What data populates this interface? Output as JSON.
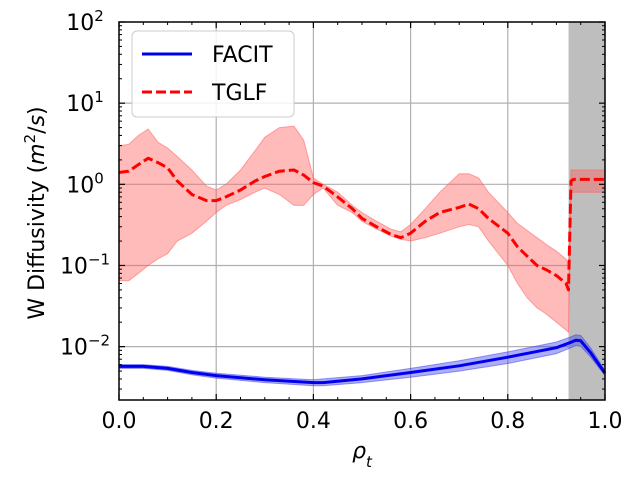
{
  "chart_data": {
    "type": "line",
    "xlabel": "ρ_t",
    "ylabel": "W Diffusivity (m²/s)",
    "xlim": [
      0.0,
      1.0
    ],
    "ylim": [
      0.0022,
      100
    ],
    "yscale": "log",
    "grid": true,
    "legend_position": "top-left",
    "x_ticks": [
      "0.0",
      "0.2",
      "0.4",
      "0.6",
      "0.8",
      "1.0"
    ],
    "y_ticks": [
      {
        "base": "10",
        "exp": "−2"
      },
      {
        "base": "10",
        "exp": "−1"
      },
      {
        "base": "10",
        "exp": "0"
      },
      {
        "base": "10",
        "exp": "1"
      },
      {
        "base": "10",
        "exp": "2"
      }
    ],
    "shaded_region": {
      "x_start": 0.925,
      "x_end": 1.0,
      "color": "#bebebe"
    },
    "series": [
      {
        "name": "FACIT",
        "color": "#0000ee",
        "style": "solid",
        "x": [
          0.0,
          0.05,
          0.1,
          0.15,
          0.2,
          0.3,
          0.4,
          0.42,
          0.5,
          0.6,
          0.7,
          0.8,
          0.9,
          0.93,
          0.94,
          0.95,
          0.97,
          1.0
        ],
        "y": [
          0.0057,
          0.0057,
          0.0054,
          0.0048,
          0.0044,
          0.0039,
          0.0036,
          0.0036,
          0.004,
          0.0048,
          0.0058,
          0.0074,
          0.0097,
          0.0113,
          0.012,
          0.0118,
          0.0085,
          0.0047
        ],
        "band_low": [
          0.0054,
          0.0054,
          0.0051,
          0.0045,
          0.0041,
          0.0036,
          0.0033,
          0.0033,
          0.0036,
          0.0042,
          0.005,
          0.0062,
          0.0082,
          0.0097,
          0.0103,
          0.0101,
          0.0075,
          0.0044
        ],
        "band_high": [
          0.006,
          0.006,
          0.0057,
          0.0051,
          0.0047,
          0.0042,
          0.0039,
          0.004,
          0.0044,
          0.0054,
          0.0067,
          0.0086,
          0.0114,
          0.0132,
          0.014,
          0.0137,
          0.0097,
          0.0051
        ]
      },
      {
        "name": "TGLF",
        "color": "#ff0000",
        "style": "dashed",
        "x": [
          0.0,
          0.02,
          0.04,
          0.06,
          0.08,
          0.1,
          0.12,
          0.15,
          0.18,
          0.2,
          0.22,
          0.25,
          0.28,
          0.3,
          0.33,
          0.36,
          0.38,
          0.4,
          0.42,
          0.45,
          0.48,
          0.5,
          0.53,
          0.56,
          0.58,
          0.6,
          0.63,
          0.66,
          0.7,
          0.72,
          0.74,
          0.76,
          0.8,
          0.82,
          0.84,
          0.86,
          0.88,
          0.9,
          0.92,
          0.925,
          0.93,
          0.935,
          1.0
        ],
        "y": [
          1.4,
          1.45,
          1.75,
          2.1,
          1.85,
          1.6,
          1.1,
          0.75,
          0.63,
          0.63,
          0.7,
          0.85,
          1.1,
          1.25,
          1.45,
          1.5,
          1.3,
          1.05,
          0.95,
          0.7,
          0.5,
          0.38,
          0.3,
          0.24,
          0.22,
          0.25,
          0.35,
          0.45,
          0.52,
          0.57,
          0.5,
          0.38,
          0.25,
          0.17,
          0.13,
          0.1,
          0.088,
          0.075,
          0.06,
          0.05,
          1.1,
          1.15,
          1.15
        ],
        "band_low": [
          0.065,
          0.065,
          0.08,
          0.1,
          0.12,
          0.14,
          0.2,
          0.25,
          0.35,
          0.45,
          0.55,
          0.65,
          0.8,
          0.9,
          0.75,
          0.55,
          0.55,
          0.75,
          0.9,
          0.55,
          0.45,
          0.35,
          0.28,
          0.23,
          0.21,
          0.2,
          0.22,
          0.25,
          0.3,
          0.32,
          0.3,
          0.2,
          0.1,
          0.06,
          0.04,
          0.03,
          0.025,
          0.02,
          0.016,
          0.015,
          0.8,
          0.8,
          0.8
        ],
        "band_high": [
          3.0,
          3.1,
          4.0,
          4.8,
          3.3,
          2.8,
          2.2,
          1.5,
          0.95,
          0.85,
          1.0,
          1.5,
          2.6,
          3.8,
          5.0,
          5.2,
          3.5,
          1.2,
          1.0,
          0.8,
          0.55,
          0.45,
          0.35,
          0.28,
          0.26,
          0.32,
          0.5,
          0.8,
          1.35,
          1.35,
          1.2,
          0.8,
          0.45,
          0.33,
          0.27,
          0.22,
          0.18,
          0.15,
          0.12,
          0.1,
          1.5,
          1.5,
          1.5
        ]
      }
    ]
  }
}
